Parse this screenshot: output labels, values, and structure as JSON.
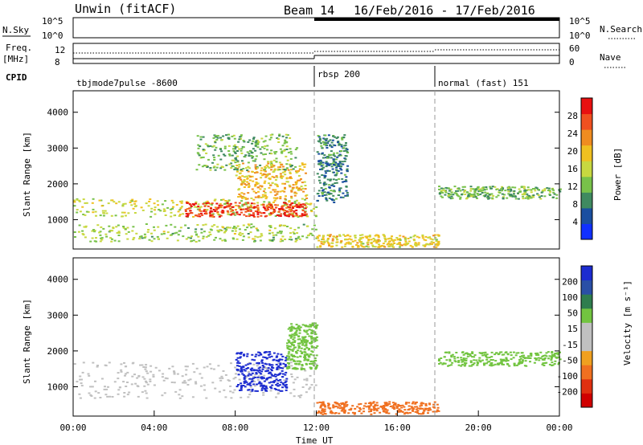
{
  "header": {
    "site": "Unwin (fitACF)",
    "beam": "Beam 14",
    "dates": "16/Feb/2016 - 17/Feb/2016"
  },
  "top_panels": {
    "nsky_label": "N.Sky",
    "nsky_ticks": [
      "10^5",
      "10^0"
    ],
    "nsearch_ticks": [
      "10^5",
      "10^0"
    ],
    "nsearch_label": "N.Search",
    "freq_label": "Freq.",
    "freq_unit": "[MHz]",
    "freq_ticks": [
      "12",
      "8"
    ],
    "nave_ticks": [
      "60",
      "0"
    ],
    "nave_label": "Nave",
    "cpid_label": "CPID",
    "cpid_modes": [
      {
        "name": "tbjmode7pulse -8600",
        "start_hour": 0
      },
      {
        "name": "rbsp 200",
        "start_hour": 12
      },
      {
        "name": "normal (fast) 151",
        "start_hour": 18
      }
    ]
  },
  "colors": {
    "power_scale": [
      "#1030ff",
      "#1a4fa0",
      "#3f8a60",
      "#78c24a",
      "#c8d840",
      "#f0c020",
      "#f08c20",
      "#f05020",
      "#e81010"
    ],
    "velocity_scale": [
      "#1c2cd0",
      "#2a4fa6",
      "#2f7d4e",
      "#72c440",
      "#c0c0c0",
      "#c0c0c0",
      "#f0a020",
      "#f07020",
      "#e03010",
      "#d00000"
    ]
  },
  "chart_data": [
    {
      "type": "heatmap",
      "panel": "power",
      "ylabel": "Slant Range [km]",
      "xlim": [
        0,
        24
      ],
      "ylim": [
        180,
        4600
      ],
      "y_ticks": [
        1000,
        2000,
        3000,
        4000
      ],
      "colorbar": {
        "label": "Power [dB]",
        "ticks": [
          4,
          8,
          12,
          16,
          20,
          24,
          28
        ],
        "range": [
          0,
          32
        ]
      },
      "bands": [
        {
          "x0": 0,
          "x1": 12,
          "y0": 1100,
          "y1": 1600,
          "value": 16
        },
        {
          "x0": 5.5,
          "x1": 11.5,
          "y0": 1100,
          "y1": 1500,
          "value": 28
        },
        {
          "x0": 0,
          "x1": 12,
          "y0": 400,
          "y1": 900,
          "value": 14
        },
        {
          "x0": 8,
          "x1": 11.5,
          "y0": 1600,
          "y1": 2600,
          "value": 20
        },
        {
          "x0": 6,
          "x1": 11,
          "y0": 2400,
          "y1": 3400,
          "value": 12
        },
        {
          "x0": 12,
          "x1": 18,
          "y0": 250,
          "y1": 600,
          "value": 18
        },
        {
          "x0": 12,
          "x1": 13.5,
          "y0": 1500,
          "y1": 3400,
          "value": 8
        },
        {
          "x0": 18,
          "x1": 24,
          "y0": 1600,
          "y1": 1950,
          "value": 12
        }
      ]
    },
    {
      "type": "heatmap",
      "panel": "velocity",
      "ylabel": "Slant Range [km]",
      "xlabel": "Time UT",
      "xlim": [
        0,
        24
      ],
      "ylim": [
        180,
        4600
      ],
      "y_ticks": [
        1000,
        2000,
        3000,
        4000
      ],
      "x_ticks": [
        "00:00",
        "04:00",
        "08:00",
        "12:00",
        "16:00",
        "20:00",
        "00:00"
      ],
      "colorbar": {
        "label": "Velocity [m s⁻¹]",
        "ticks": [
          -200,
          -100,
          -50,
          -15,
          15,
          50,
          100,
          200
        ]
      },
      "bands": [
        {
          "x0": 0,
          "x1": 12,
          "y0": 700,
          "y1": 1700,
          "value": 0
        },
        {
          "x0": 8,
          "x1": 10.5,
          "y0": 900,
          "y1": 2000,
          "value": 200
        },
        {
          "x0": 12,
          "x1": 18,
          "y0": 250,
          "y1": 600,
          "value": -100
        },
        {
          "x0": 18,
          "x1": 24,
          "y0": 1600,
          "y1": 2000,
          "value": 50
        },
        {
          "x0": 10.5,
          "x1": 12,
          "y0": 1500,
          "y1": 2800,
          "value": 60
        }
      ]
    }
  ]
}
